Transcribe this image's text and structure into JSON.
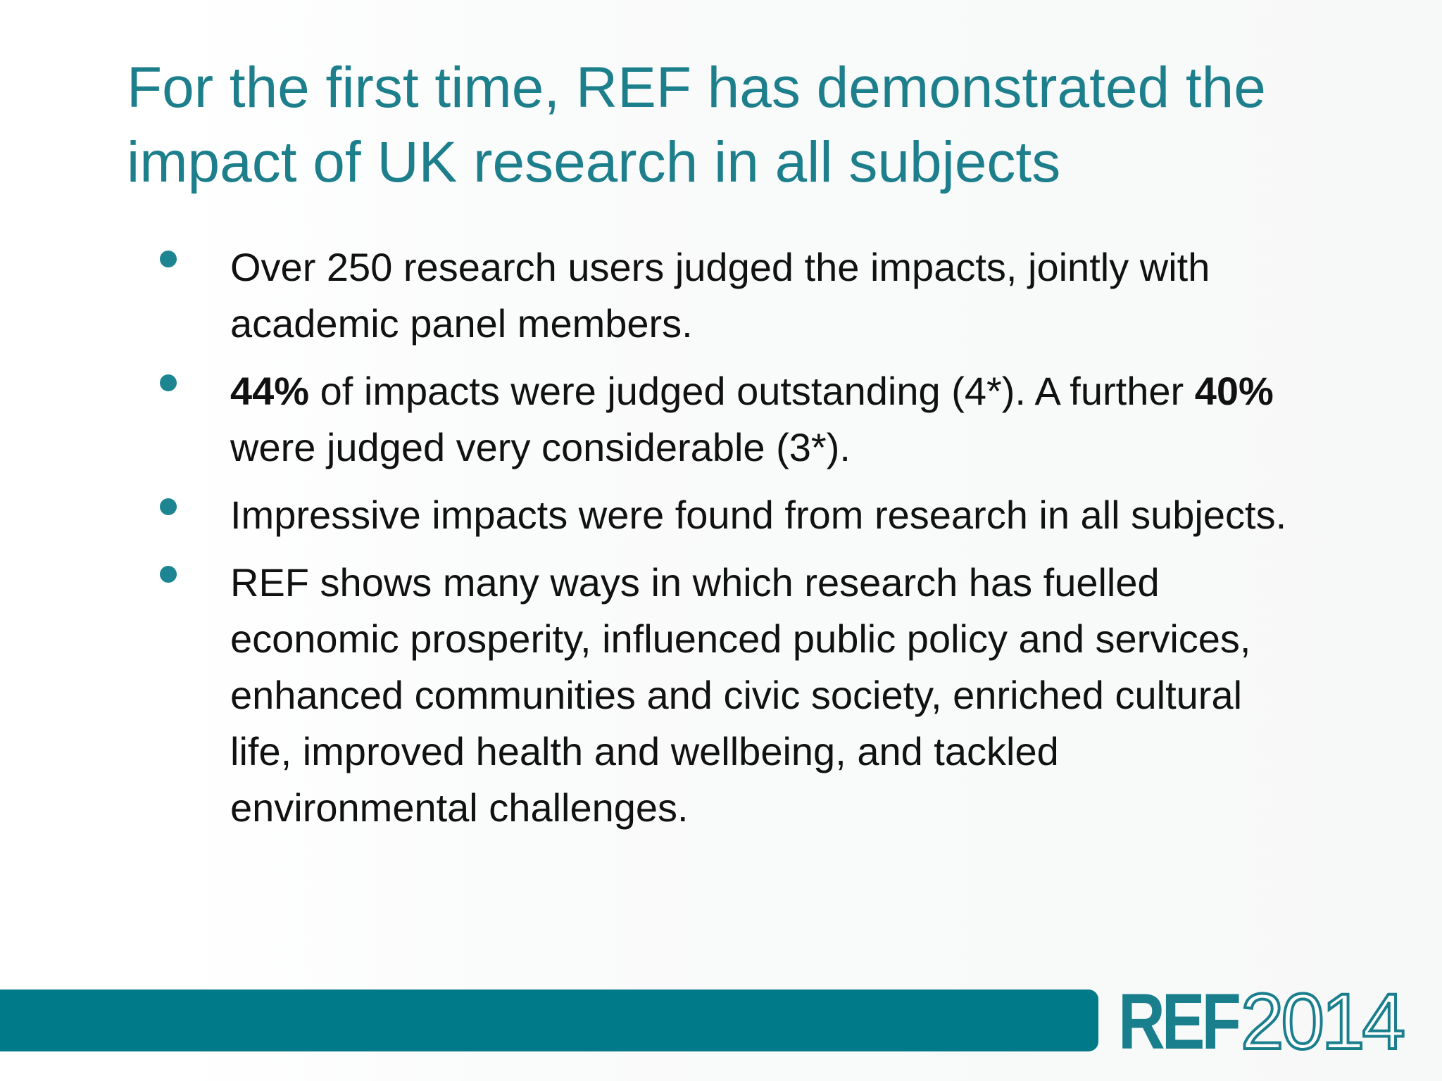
{
  "slide": {
    "title": "For the first time, REF has demonstrated the impact of UK research in all subjects",
    "bullets": [
      {
        "text": "Over 250 research users judged the impacts, jointly with academic panel members."
      },
      {
        "bold1": "44%",
        "text1": " of impacts were judged outstanding (4*). A further ",
        "bold2": "40%",
        "text2": " were judged very considerable (3*)."
      },
      {
        "text": "Impressive impacts were found from research in all subjects."
      },
      {
        "text": "REF shows many ways in which research has fuelled economic prosperity, influenced public policy and services, enhanced communities and civic society, enriched cultural life, improved health and wellbeing, and tackled environmental challenges."
      }
    ]
  },
  "footer": {
    "logo_part1": "REF",
    "logo_part2": "2014"
  },
  "colors": {
    "accent": "#1d7f8c",
    "bar": "#007a89",
    "bullet": "#1d8592"
  }
}
